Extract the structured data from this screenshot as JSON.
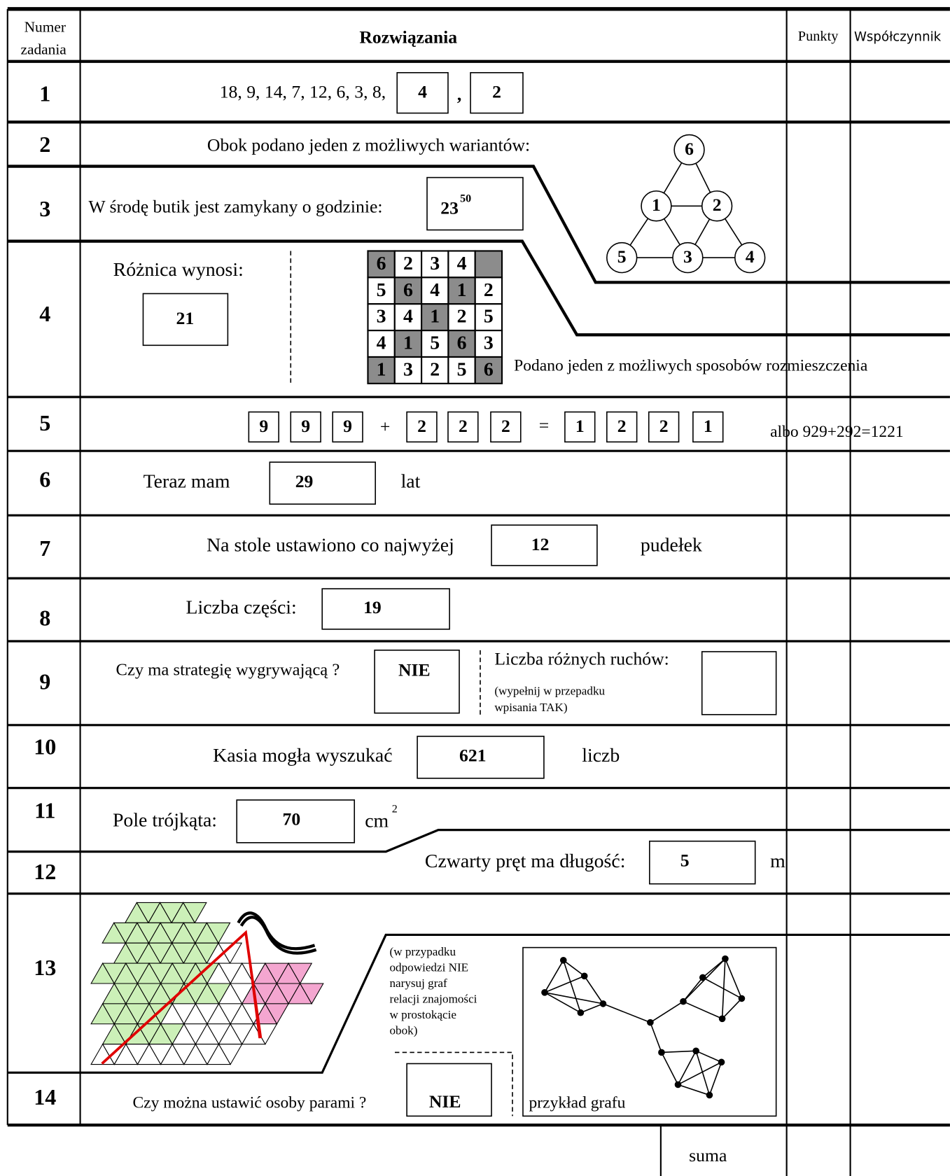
{
  "header": {
    "number_label": [
      "Numer",
      "zadania"
    ],
    "solutions": "Rozwiązania",
    "points": "Punkty",
    "coefficient": "Współczynnik"
  },
  "tasks": [
    {
      "number": "1",
      "sequence": "18, 9, 14, 7, 12, 6, 3, 8,",
      "answer_1": "4",
      "comma": ",",
      "answer_2": "2"
    },
    {
      "number": "2",
      "text": "Obok podano jeden z możliwych wariantów:",
      "nodes": [
        "6",
        "1",
        "2",
        "5",
        "3",
        "4"
      ]
    },
    {
      "number": "3",
      "text": "W środę butik jest zamykany o godzinie:",
      "answer": "23",
      "answer_sup": "50"
    },
    {
      "number": "4",
      "text": "Różnica wynosi:",
      "answer": "21",
      "grid": [
        [
          "6",
          "2",
          "3",
          "4",
          null
        ],
        [
          "5",
          "6",
          "4",
          "1",
          "2"
        ],
        [
          "3",
          "4",
          "1",
          "2",
          "5"
        ],
        [
          "4",
          "1",
          "5",
          "6",
          "3"
        ],
        [
          "1",
          "3",
          "2",
          "5",
          "6"
        ]
      ],
      "note": "Podano jeden z możliwych sposobów rozmieszczenia"
    },
    {
      "number": "5",
      "left": [
        "9",
        "9",
        "9"
      ],
      "plus": "+",
      "right": [
        "2",
        "2",
        "2"
      ],
      "equals": "=",
      "result": [
        "1",
        "2",
        "2",
        "1"
      ],
      "alternative": "albo 929+292=1221"
    },
    {
      "number": "6",
      "text": "Teraz mam",
      "answer": "29",
      "unit": "lat"
    },
    {
      "number": "7",
      "text": "Na stole ustawiono co najwyżej",
      "answer": "12",
      "unit": "pudełek"
    },
    {
      "number": "8",
      "text": "Liczba części:",
      "answer": "19"
    },
    {
      "number": "9",
      "text": "Czy ma strategię wygrywającą ?",
      "answer": "NIE",
      "moves_label": "Liczba różnych ruchów:",
      "moves_note": [
        "(wypełnij w przepadku",
        "wpisania TAK)"
      ]
    },
    {
      "number": "10",
      "text": "Kasia mogła wyszukać",
      "answer": "621",
      "unit": "liczb"
    },
    {
      "number": "11",
      "text": "Pole trójkąta:",
      "answer": "70",
      "unit": "cm",
      "unit_sup": "2"
    },
    {
      "number": "12",
      "text": "Czwarty pręt ma długość:",
      "answer": "5",
      "unit": "m"
    },
    {
      "number": "13",
      "note": [
        "(w przypadku",
        "odpowiedzi NIE",
        "narysuj graf",
        "relacji znajomości",
        "w prostokącie",
        "obok)"
      ],
      "graph_caption": "przykład grafu"
    },
    {
      "number": "14",
      "text": "Czy można ustawić osoby parami ?",
      "answer": "NIE"
    }
  ],
  "footer": {
    "sum": "suma"
  }
}
